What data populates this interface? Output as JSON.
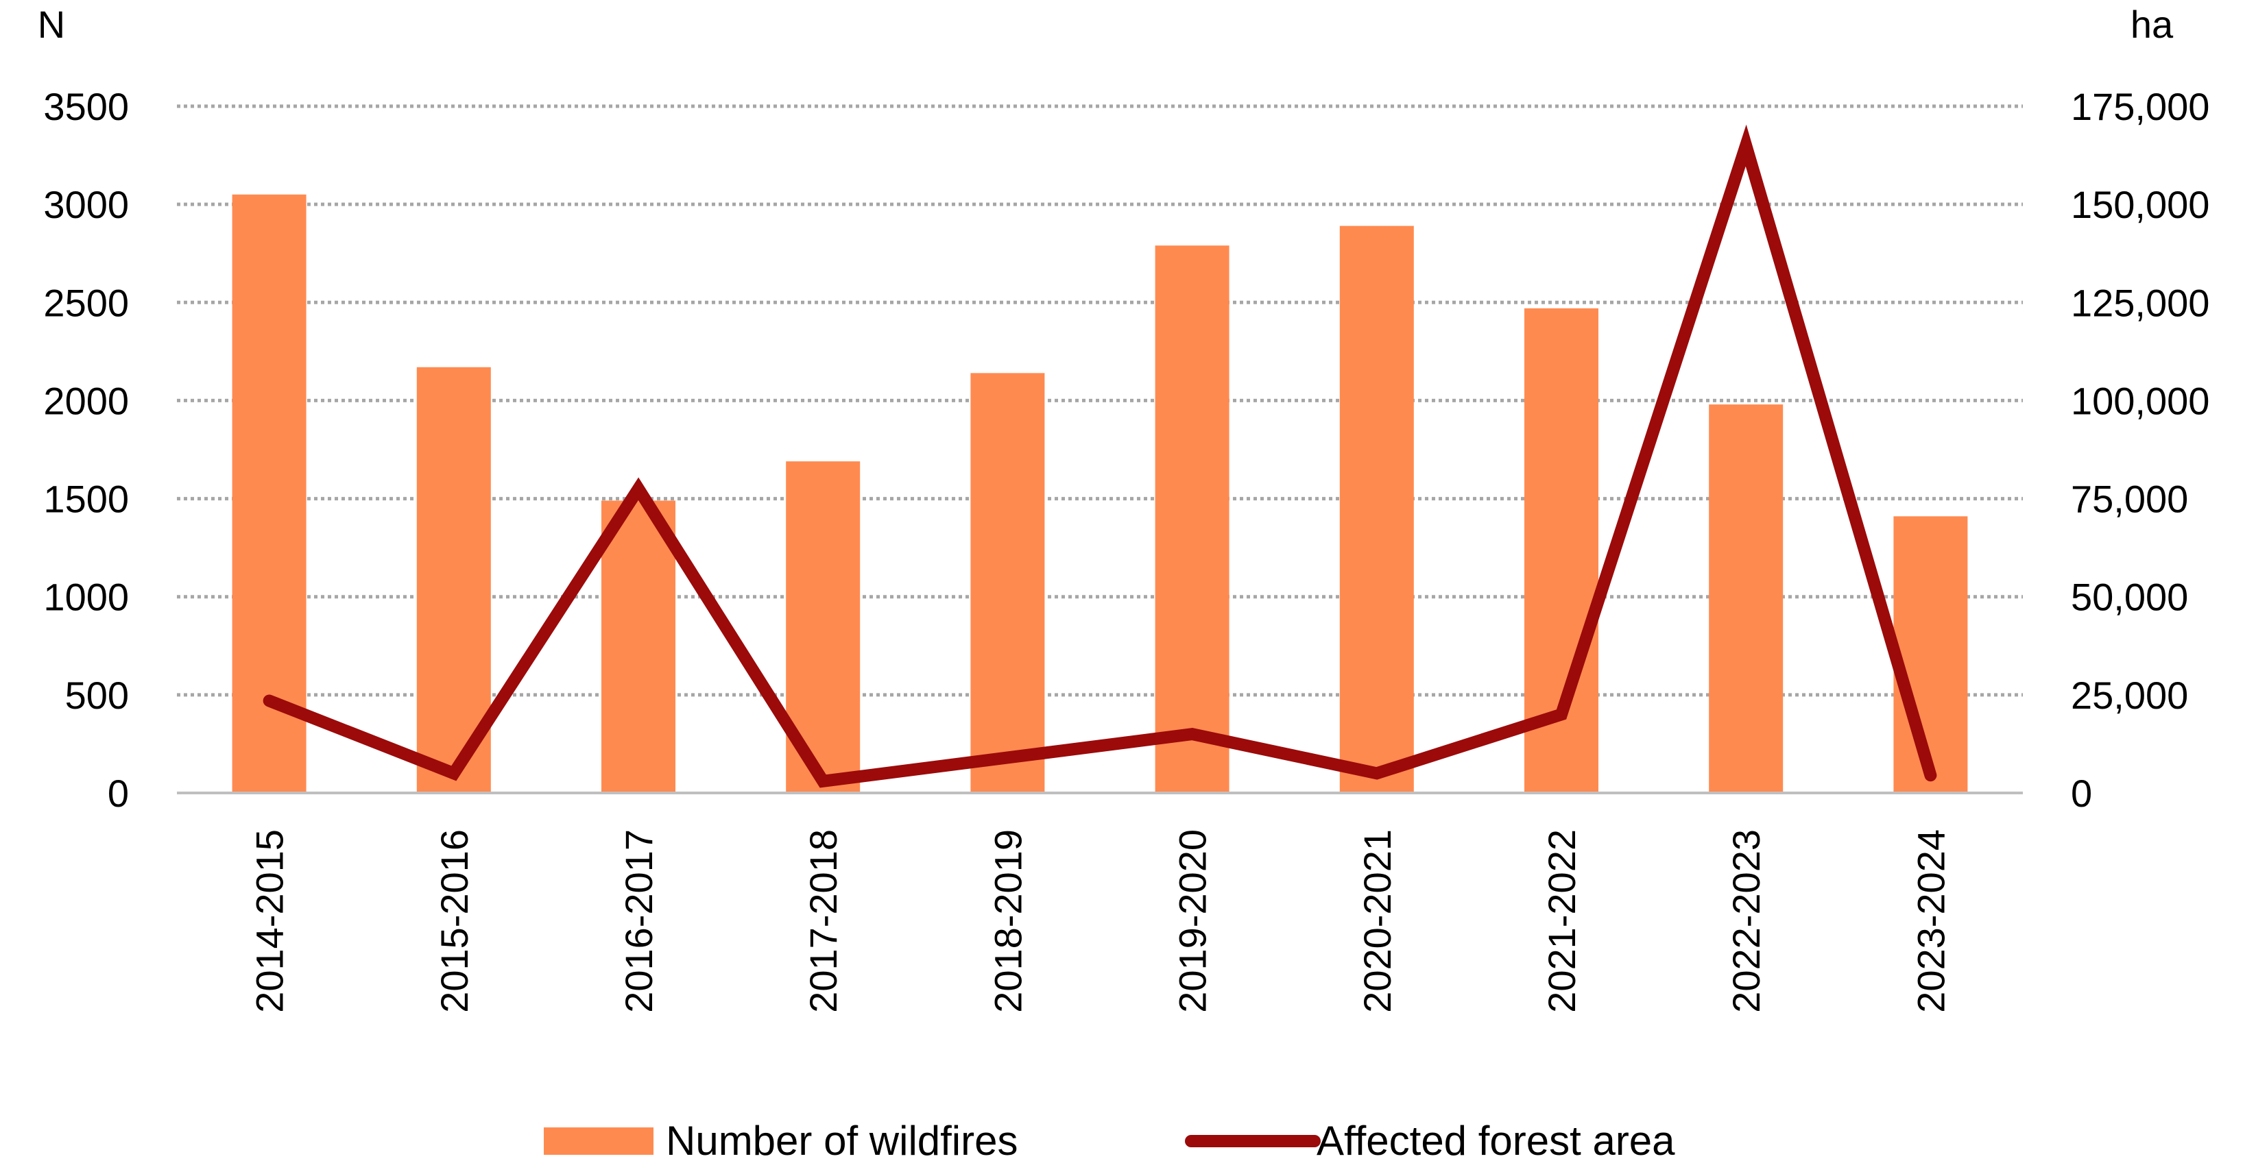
{
  "chart_data": {
    "type": "bar",
    "title": "",
    "categories": [
      "2014-2015",
      "2015-2016",
      "2016-2017",
      "2017-2018",
      "2018-2019",
      "2019-2020",
      "2020-2021",
      "2021-2022",
      "2022-2023",
      "2023-2024"
    ],
    "series": [
      {
        "name": "Number of wildfires",
        "type": "bar",
        "axis": "left",
        "color": "#FF8A50",
        "values": [
          3050,
          2170,
          1490,
          1690,
          2140,
          2790,
          2890,
          2470,
          1980,
          1410
        ]
      },
      {
        "name": "Affected forest area",
        "type": "line",
        "axis": "right",
        "color": "#9C0A0A",
        "values": [
          23500,
          5000,
          77500,
          3000,
          9000,
          15000,
          5000,
          20000,
          165000,
          4500
        ]
      }
    ],
    "y_left": {
      "label": "N",
      "ylim": [
        0,
        3500
      ],
      "ticks": [
        0,
        500,
        1000,
        1500,
        2000,
        2500,
        3000,
        3500
      ],
      "tick_labels": [
        "0",
        "500",
        "1000",
        "1500",
        "2000",
        "2500",
        "3000",
        "3500"
      ]
    },
    "y_right": {
      "label": "ha",
      "ylim": [
        0,
        175000
      ],
      "ticks": [
        0,
        25000,
        50000,
        75000,
        100000,
        125000,
        150000,
        175000
      ],
      "tick_labels": [
        "0",
        "25,000",
        "50,000",
        "75,000",
        "100,000",
        "125,000",
        "150,000",
        "175,000"
      ]
    },
    "grid": true,
    "legend": "bottom",
    "gridline_color": "#A6A6A6",
    "axis_color": "#BFBFBF"
  }
}
